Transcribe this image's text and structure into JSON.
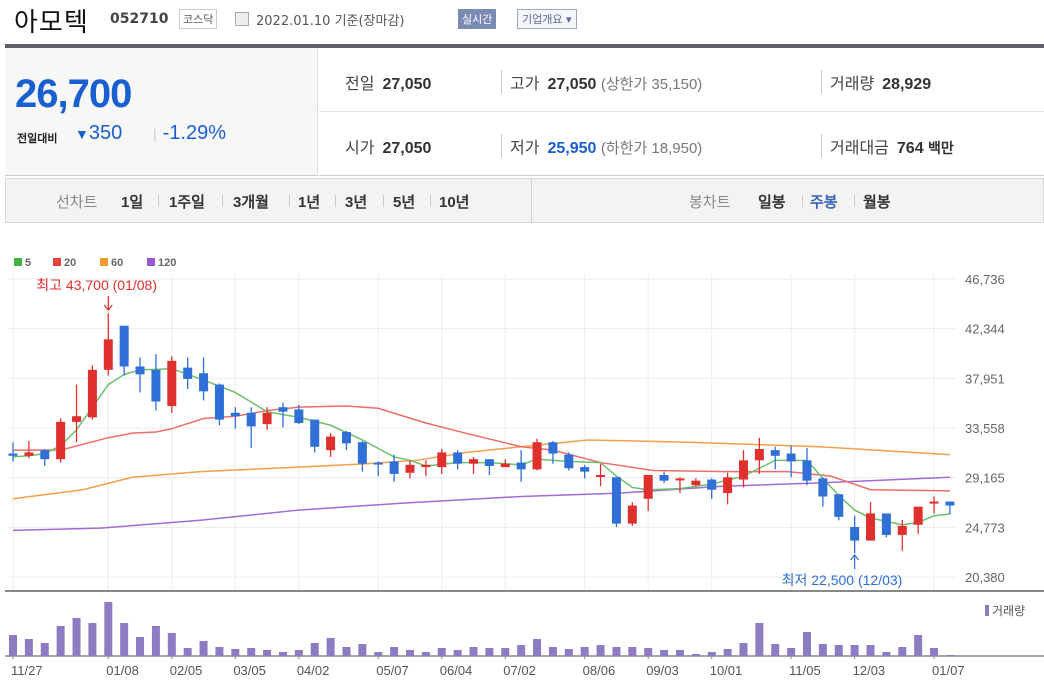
{
  "header": {
    "name": "아모텍",
    "code": "052710",
    "market": "코스닥",
    "date": "2022.01.10 기준(장마감)",
    "realtime": "실시간",
    "company_info": "기업개요 ▾"
  },
  "price": {
    "current": "26,700",
    "change_label": "전일대비",
    "change_arrow": "▼",
    "change": "350",
    "percent": "-1.29%"
  },
  "stats": {
    "prev_label": "전일",
    "prev": "27,050",
    "high_label": "고가",
    "high": "27,050",
    "upper_limit": "(상한가 35,150)",
    "volume_label": "거래량",
    "volume": "28,929",
    "open_label": "시가",
    "open": "27,050",
    "low_label": "저가",
    "low": "25,950",
    "lower_limit": "(하한가 18,950)",
    "amount_label": "거래대금",
    "amount": "764",
    "amount_unit": "백만"
  },
  "line_tabs": {
    "label": "선차트",
    "items": [
      "1일",
      "1주일",
      "3개월",
      "1년",
      "3년",
      "5년",
      "10년"
    ]
  },
  "candle_tabs": {
    "label": "봉차트",
    "items": [
      "일봉",
      "주봉",
      "월봉"
    ],
    "active": 1
  },
  "colors": {
    "up": "#e0302d",
    "down": "#2f6fd6",
    "ma5": "#5cb85c",
    "ma20": "#e8534f",
    "ma60": "#f39a2d",
    "ma120": "#9b59d6",
    "volume": "#8e7cc3"
  },
  "chart_data": {
    "type": "candlestick",
    "legend": [
      {
        "name": "5",
        "color": "#3fb23f"
      },
      {
        "name": "20",
        "color": "#e8403c"
      },
      {
        "name": "60",
        "color": "#f39a2d"
      },
      {
        "name": "120",
        "color": "#9b59d6"
      }
    ],
    "ylim": [
      20380,
      46736
    ],
    "yticks": [
      "46,736",
      "42,344",
      "37,951",
      "33,558",
      "29,165",
      "24,773",
      "20,380"
    ],
    "xticks": [
      {
        "i": 0,
        "label": "11/27"
      },
      {
        "i": 6,
        "label": "01/08"
      },
      {
        "i": 10,
        "label": "02/05"
      },
      {
        "i": 14,
        "label": "03/05"
      },
      {
        "i": 18,
        "label": "04/02"
      },
      {
        "i": 23,
        "label": "05/07"
      },
      {
        "i": 27,
        "label": "06/04"
      },
      {
        "i": 31,
        "label": "07/02"
      },
      {
        "i": 36,
        "label": "08/06"
      },
      {
        "i": 40,
        "label": "09/03"
      },
      {
        "i": 44,
        "label": "10/01"
      },
      {
        "i": 49,
        "label": "11/05"
      },
      {
        "i": 53,
        "label": "12/03"
      },
      {
        "i": 58,
        "label": "01/07"
      }
    ],
    "high_note": {
      "i": 6,
      "text": "최고 43,700 (01/08)"
    },
    "low_note": {
      "i": 53,
      "text": "최저 22,500 (12/03)"
    },
    "volume_label": "거래량",
    "ohlc": [
      [
        31300,
        32300,
        30600,
        31100
      ],
      [
        31100,
        32400,
        30900,
        31400
      ],
      [
        31600,
        31700,
        30200,
        30800
      ],
      [
        30800,
        34400,
        30500,
        34100
      ],
      [
        34100,
        37400,
        32300,
        34600
      ],
      [
        34500,
        39100,
        34300,
        38700
      ],
      [
        38700,
        43700,
        38200,
        41400
      ],
      [
        42600,
        42600,
        38200,
        39000
      ],
      [
        39000,
        39800,
        36700,
        38300
      ],
      [
        38700,
        40100,
        35100,
        35900
      ],
      [
        35500,
        39900,
        34900,
        39500
      ],
      [
        38900,
        39800,
        37000,
        37900
      ],
      [
        38400,
        39800,
        36000,
        36800
      ],
      [
        37400,
        37500,
        33800,
        34300
      ],
      [
        34900,
        35400,
        33500,
        34600
      ],
      [
        34900,
        35400,
        31800,
        33700
      ],
      [
        33900,
        35400,
        33400,
        34900
      ],
      [
        35400,
        35800,
        33600,
        35000
      ],
      [
        35200,
        35600,
        33900,
        34000
      ],
      [
        34300,
        34300,
        31400,
        31900
      ],
      [
        31600,
        33100,
        31000,
        32800
      ],
      [
        33200,
        33300,
        31600,
        32200
      ],
      [
        32300,
        32400,
        29700,
        30400
      ],
      [
        30500,
        30600,
        29300,
        30400
      ],
      [
        30600,
        31200,
        28800,
        29500
      ],
      [
        29600,
        30700,
        29100,
        30300
      ],
      [
        30100,
        30700,
        29300,
        30300
      ],
      [
        30100,
        31700,
        29500,
        31400
      ],
      [
        31400,
        31600,
        29900,
        30400
      ],
      [
        30400,
        31000,
        29500,
        30800
      ],
      [
        30800,
        30800,
        29400,
        30200
      ],
      [
        30100,
        30800,
        30100,
        30400
      ],
      [
        30500,
        31600,
        28800,
        29900
      ],
      [
        29900,
        32600,
        29800,
        32300
      ],
      [
        32300,
        32400,
        30400,
        31300
      ],
      [
        31200,
        31400,
        29800,
        30000
      ],
      [
        30100,
        30300,
        29100,
        29700
      ],
      [
        29300,
        30400,
        28400,
        29400
      ],
      [
        29200,
        29200,
        24800,
        25100
      ],
      [
        25100,
        27000,
        24900,
        26700
      ],
      [
        27300,
        29400,
        26200,
        29400
      ],
      [
        29400,
        29700,
        28700,
        28900
      ],
      [
        29000,
        29200,
        27800,
        29100
      ],
      [
        28500,
        29100,
        28400,
        28900
      ],
      [
        29000,
        29100,
        27300,
        28100
      ],
      [
        27800,
        29600,
        26800,
        29200
      ],
      [
        29000,
        31600,
        28300,
        30700
      ],
      [
        30700,
        32700,
        29500,
        31700
      ],
      [
        31600,
        31900,
        29900,
        31100
      ],
      [
        31300,
        32000,
        29200,
        30600
      ],
      [
        30700,
        31800,
        28500,
        28900
      ],
      [
        29100,
        29200,
        26600,
        27500
      ],
      [
        27700,
        27700,
        25400,
        25700
      ],
      [
        24800,
        25800,
        22500,
        23600
      ],
      [
        23600,
        27000,
        23600,
        26000
      ],
      [
        26000,
        26000,
        23900,
        24100
      ],
      [
        24100,
        25400,
        22700,
        24900
      ],
      [
        25000,
        26600,
        24200,
        26600
      ],
      [
        27000,
        27500,
        26000,
        27050
      ],
      [
        27050,
        27050,
        25950,
        26700
      ]
    ],
    "volume": [
      21,
      17,
      13,
      30,
      38,
      33,
      54,
      33,
      19,
      30,
      23,
      8,
      15,
      9,
      7,
      8,
      6,
      4,
      6,
      13,
      18,
      9,
      12,
      4,
      9,
      6,
      4,
      8,
      6,
      9,
      8,
      8,
      11,
      17,
      9,
      7,
      9,
      11,
      9,
      9,
      8,
      6,
      6,
      2,
      4,
      7,
      13,
      33,
      12,
      8,
      24,
      12,
      11,
      11,
      11,
      4,
      9,
      21,
      8,
      1
    ],
    "ma": {
      "5": [
        [
          0,
          31000
        ],
        [
          1,
          31100
        ],
        [
          2,
          31300
        ],
        [
          3,
          32000
        ],
        [
          4,
          33400
        ],
        [
          5,
          35400
        ],
        [
          6,
          37400
        ],
        [
          7,
          38300
        ],
        [
          8,
          38700
        ],
        [
          10,
          38800
        ],
        [
          12,
          37800
        ],
        [
          14,
          36700
        ],
        [
          16,
          35000
        ],
        [
          18,
          34500
        ],
        [
          20,
          33800
        ],
        [
          22,
          32500
        ],
        [
          24,
          31000
        ],
        [
          25,
          30700
        ],
        [
          26,
          30200
        ],
        [
          28,
          30500
        ],
        [
          30,
          30500
        ],
        [
          32,
          30300
        ],
        [
          33,
          30800
        ],
        [
          35,
          30600
        ],
        [
          37,
          30500
        ],
        [
          38,
          29300
        ],
        [
          39,
          28300
        ],
        [
          40,
          28100
        ],
        [
          42,
          28200
        ],
        [
          44,
          28600
        ],
        [
          46,
          29300
        ],
        [
          48,
          30700
        ],
        [
          50,
          30700
        ],
        [
          51,
          29100
        ],
        [
          52,
          27600
        ],
        [
          53,
          26300
        ],
        [
          54,
          25600
        ],
        [
          56,
          25000
        ],
        [
          57,
          25200
        ],
        [
          58,
          25800
        ],
        [
          59,
          25950
        ]
      ],
      "20": [
        [
          0,
          31600
        ],
        [
          3,
          31600
        ],
        [
          6,
          32700
        ],
        [
          7.5,
          33100
        ],
        [
          9,
          33200
        ],
        [
          10,
          33500
        ],
        [
          12,
          34400
        ],
        [
          14,
          34600
        ],
        [
          16,
          35100
        ],
        [
          18,
          35400
        ],
        [
          21,
          35500
        ],
        [
          23,
          35300
        ],
        [
          26,
          34000
        ],
        [
          28.5,
          33100
        ],
        [
          32,
          31900
        ],
        [
          34,
          31600
        ],
        [
          37,
          30500
        ],
        [
          40.3,
          29800
        ],
        [
          45,
          29700
        ],
        [
          48.8,
          29700
        ],
        [
          51.5,
          29300
        ],
        [
          54,
          28100
        ],
        [
          59,
          28000
        ]
      ],
      "60": [
        [
          0,
          27300
        ],
        [
          4.4,
          28100
        ],
        [
          7.5,
          29200
        ],
        [
          11.8,
          29700
        ],
        [
          18,
          30100
        ],
        [
          22.3,
          30400
        ],
        [
          25.4,
          30700
        ],
        [
          28.6,
          31400
        ],
        [
          32,
          31900
        ],
        [
          36.2,
          32500
        ],
        [
          42.5,
          32300
        ],
        [
          50.8,
          31900
        ],
        [
          59,
          31200
        ]
      ],
      "120": [
        [
          0,
          24500
        ],
        [
          5.5,
          24700
        ],
        [
          11.8,
          25400
        ],
        [
          18,
          26300
        ],
        [
          24.4,
          26900
        ],
        [
          32,
          27500
        ],
        [
          38.2,
          27800
        ],
        [
          44.5,
          28400
        ],
        [
          50.8,
          28700
        ],
        [
          59,
          29200
        ]
      ]
    }
  }
}
